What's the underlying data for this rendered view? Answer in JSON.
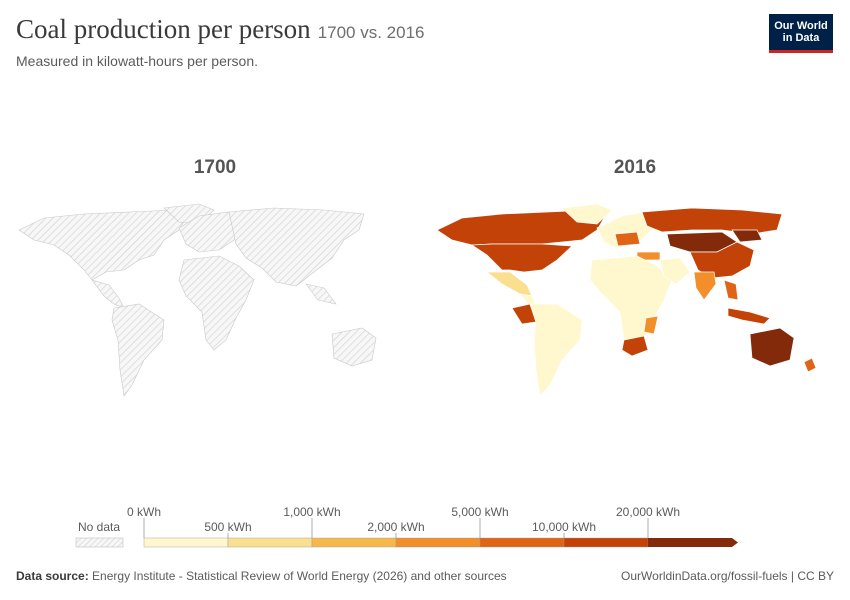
{
  "header": {
    "title": "Coal production per person",
    "title_suffix": "1700 vs. 2016",
    "subtitle": "Measured in kilowatt-hours per person."
  },
  "logo": {
    "line1": "Our World",
    "line2": "in Data"
  },
  "maps": [
    {
      "year": "1700"
    },
    {
      "year": "2016"
    }
  ],
  "legend": {
    "no_data_label": "No data",
    "top_labels": [
      "0 kWh",
      "1,000 kWh",
      "5,000 kWh",
      "20,000 kWh"
    ],
    "bottom_labels": [
      "500 kWh",
      "2,000 kWh",
      "10,000 kWh"
    ],
    "colors": [
      "#fff7cd",
      "#f9df8e",
      "#f7b84b",
      "#f28f2b",
      "#df6416",
      "#c24208",
      "#832a0a"
    ]
  },
  "footer": {
    "source_label": "Data source:",
    "source_text": "Energy Institute - Statistical Review of World Energy (2026) and other sources",
    "url": "OurWorldinData.org/fossil-fuels | CC BY"
  }
}
